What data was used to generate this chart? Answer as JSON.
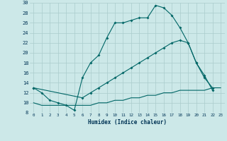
{
  "xlabel": "Humidex (Indice chaleur)",
  "bg_color": "#cce8e8",
  "grid_color": "#aacccc",
  "line_color": "#006666",
  "xlim": [
    -0.5,
    23.5
  ],
  "ylim": [
    8,
    30
  ],
  "xticks": [
    0,
    1,
    2,
    3,
    4,
    5,
    6,
    7,
    8,
    9,
    10,
    11,
    12,
    13,
    14,
    15,
    16,
    17,
    18,
    19,
    20,
    21,
    22,
    23
  ],
  "yticks": [
    8,
    10,
    12,
    14,
    16,
    18,
    20,
    22,
    24,
    26,
    28,
    30
  ],
  "line1_x": [
    0,
    1,
    2,
    3,
    4,
    5,
    6,
    7,
    8,
    9,
    10,
    11,
    12,
    13,
    14,
    15,
    16,
    17,
    18,
    19,
    20,
    21,
    22
  ],
  "line1_y": [
    13,
    12,
    10.5,
    10,
    9.5,
    8.5,
    15,
    18,
    19.5,
    23,
    26,
    26,
    26.5,
    27,
    27,
    29.5,
    29,
    27.5,
    25,
    22,
    18,
    15,
    13
  ],
  "line2_x": [
    0,
    6,
    7,
    8,
    9,
    10,
    11,
    12,
    13,
    14,
    15,
    16,
    17,
    18,
    19,
    20,
    21,
    22
  ],
  "line2_y": [
    13,
    11,
    12,
    13,
    14,
    15,
    16,
    17,
    18,
    19,
    20,
    21,
    22,
    22.5,
    22,
    18,
    15.5,
    12.5
  ],
  "line3_x": [
    0,
    1,
    2,
    3,
    4,
    5,
    6,
    7,
    8,
    9,
    10,
    11,
    12,
    13,
    14,
    15,
    16,
    17,
    18,
    19,
    20,
    21,
    22,
    23
  ],
  "line3_y": [
    10,
    9.5,
    9.5,
    9.5,
    9.5,
    9.5,
    9.5,
    9.5,
    10,
    10,
    10.5,
    10.5,
    11,
    11,
    11.5,
    11.5,
    12,
    12,
    12.5,
    12.5,
    12.5,
    12.5,
    13,
    13
  ]
}
